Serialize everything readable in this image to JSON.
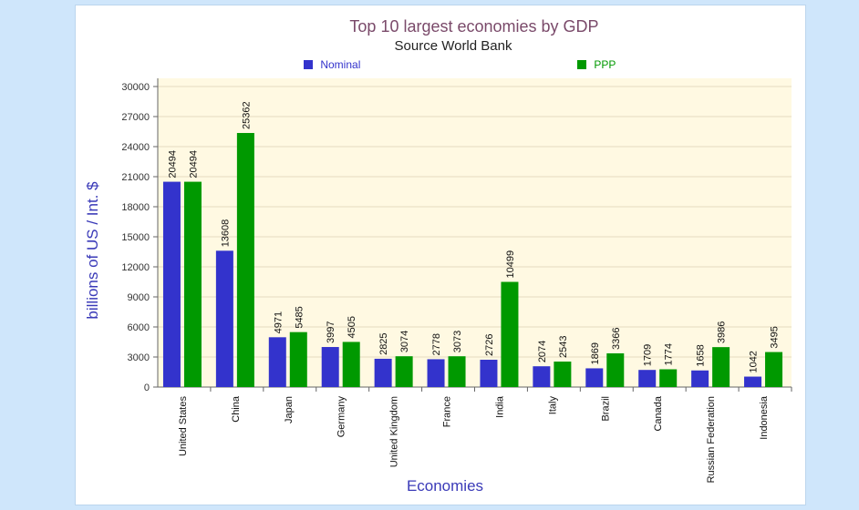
{
  "colors": {
    "nominal": "#3333cc",
    "ppp": "#009900",
    "plot_bg": "#fff9e2"
  },
  "chart_data": {
    "type": "bar",
    "title": "Top 10 largest economies by GDP",
    "subtitle": "Source World Bank",
    "xlabel": "Economies",
    "ylabel": "billions of US / Int. $",
    "ylim": [
      0,
      30000
    ],
    "yticks": [
      0,
      3000,
      6000,
      9000,
      12000,
      15000,
      18000,
      21000,
      24000,
      27000,
      30000
    ],
    "categories": [
      "United States",
      "China",
      "Japan",
      "Germany",
      "United Kingdom",
      "France",
      "India",
      "Italy",
      "Brazil",
      "Canada",
      "Russian Federation",
      "Indonesia"
    ],
    "series": [
      {
        "name": "Nominal",
        "values": [
          20494,
          13608,
          4971,
          3997,
          2825,
          2778,
          2726,
          2074,
          1869,
          1709,
          1658,
          1042
        ]
      },
      {
        "name": "PPP",
        "values": [
          20494,
          25362,
          5485,
          4505,
          3074,
          3073,
          10499,
          2543,
          3366,
          1774,
          3986,
          3495
        ]
      }
    ],
    "legend_position": "top"
  }
}
